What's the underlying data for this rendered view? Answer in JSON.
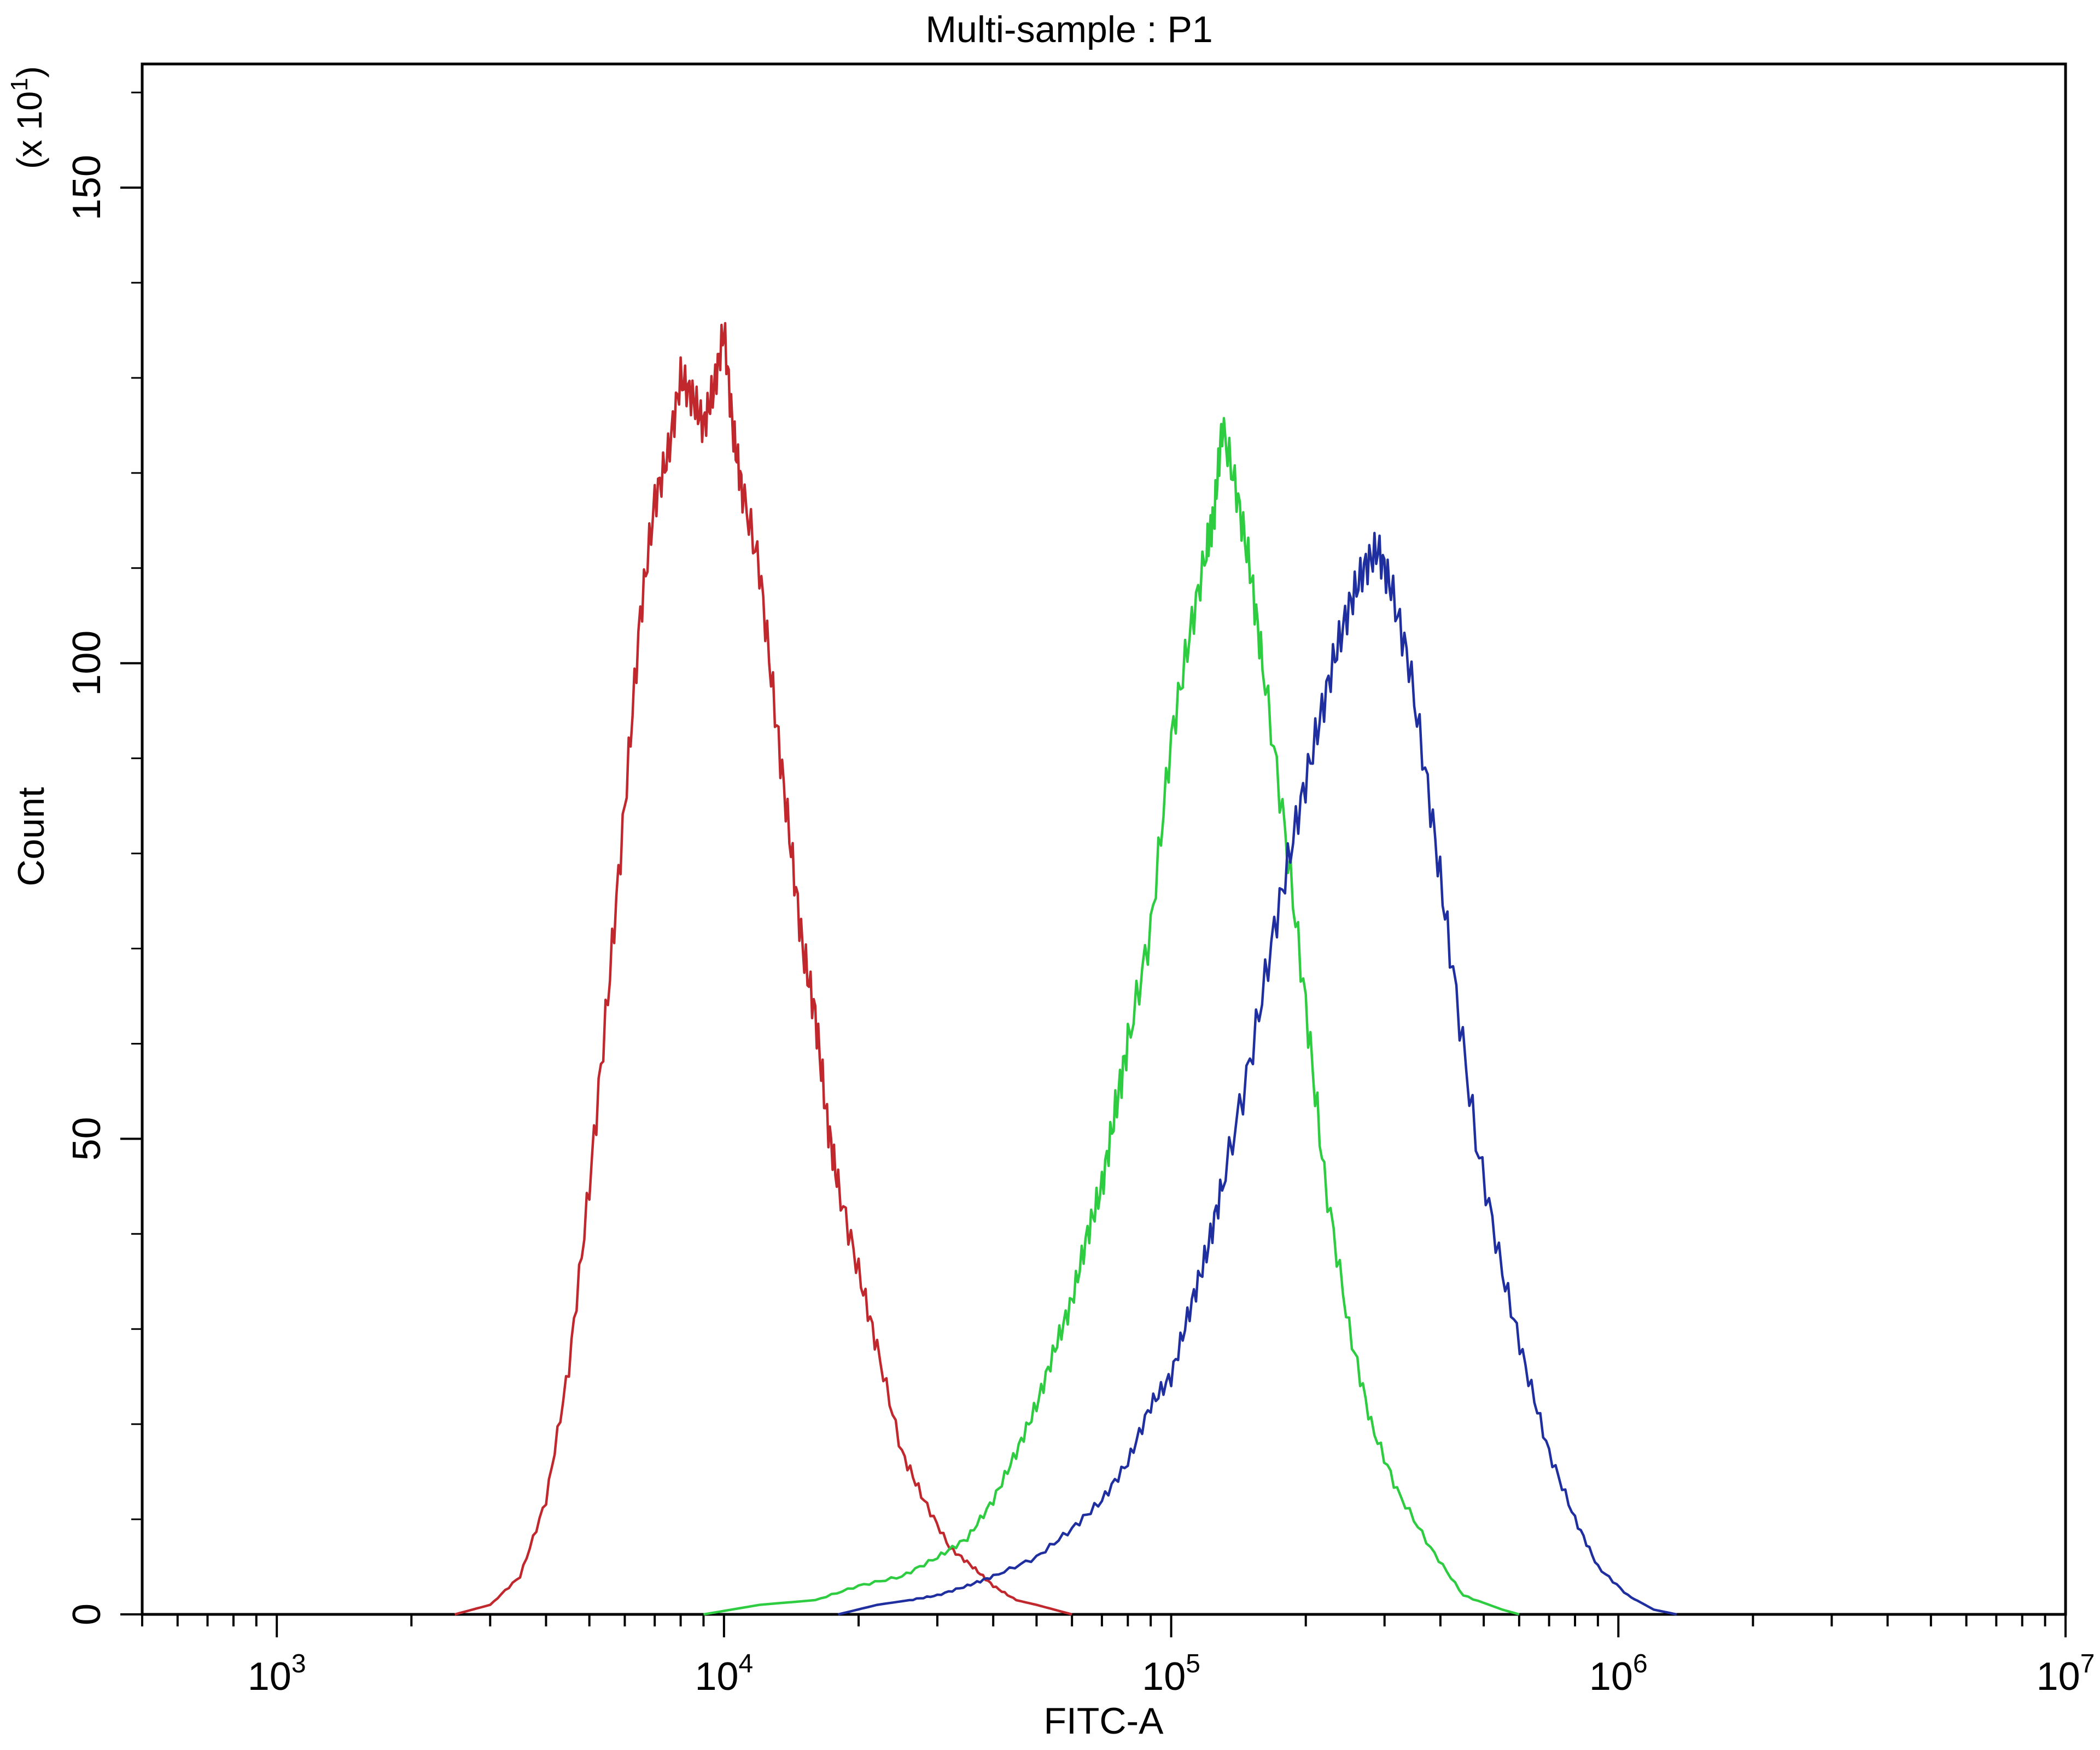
{
  "chart_data": {
    "type": "line",
    "title": "Multi-sample : P1",
    "xlabel": "FITC-A",
    "ylabel": "Count",
    "y_multiplier_label": "(x 10^1)",
    "x_scale": "log",
    "xlim": [
      500,
      10000000
    ],
    "ylim": [
      0,
      163
    ],
    "x_ticks": [
      {
        "value": 1000,
        "base": "10",
        "exp": "3"
      },
      {
        "value": 10000,
        "base": "10",
        "exp": "4"
      },
      {
        "value": 100000,
        "base": "10",
        "exp": "5"
      },
      {
        "value": 1000000,
        "base": "10",
        "exp": "6"
      },
      {
        "value": 10000000,
        "base": "10",
        "exp": "7"
      }
    ],
    "y_ticks": [
      "0",
      "50",
      "100",
      "150"
    ],
    "grid": false,
    "legend": "none",
    "series": [
      {
        "color": "#c0282d",
        "x": [
          2500,
          3000,
          3500,
          4000,
          4500,
          5000,
          5500,
          6000,
          6500,
          7000,
          7500,
          8000,
          8500,
          9000,
          9500,
          10000,
          10500,
          11000,
          12000,
          13000,
          14000,
          15000,
          16000,
          17000,
          18000,
          20000,
          22000,
          25000,
          28000,
          32000,
          36000,
          40000,
          45000,
          50000,
          60000
        ],
        "y": [
          0,
          1,
          4,
          12,
          26,
          45,
          65,
          85,
          105,
          117,
          122,
          130,
          128,
          125,
          129,
          135,
          124,
          118,
          110,
          95,
          82,
          70,
          63,
          52,
          45,
          36,
          28,
          17,
          12,
          7,
          5,
          3,
          1.5,
          1,
          0
        ]
      },
      {
        "color": "#2ecc40",
        "x": [
          9000,
          12000,
          16000,
          20000,
          25000,
          30000,
          35000,
          40000,
          45000,
          50000,
          55000,
          60000,
          65000,
          70000,
          75000,
          80000,
          90000,
          100000,
          110000,
          120000,
          125000,
          130000,
          140000,
          150000,
          160000,
          180000,
          200000,
          220000,
          250000,
          280000,
          320000,
          380000,
          450000,
          550000,
          600000
        ],
        "y": [
          0,
          1,
          1.5,
          3,
          4,
          6,
          8,
          12,
          17,
          22,
          28,
          33,
          40,
          45,
          53,
          60,
          72,
          92,
          103,
          112,
          116,
          125,
          118,
          110,
          100,
          82,
          64,
          46,
          30,
          20,
          13,
          7,
          2,
          0.5,
          0
        ]
      },
      {
        "color": "#1f2fa0",
        "x": [
          18000,
          22000,
          26000,
          30000,
          35000,
          40000,
          50000,
          60000,
          70000,
          80000,
          90000,
          100000,
          110000,
          120000,
          130000,
          150000,
          170000,
          190000,
          210000,
          230000,
          250000,
          270000,
          290000,
          310000,
          340000,
          380000,
          420000,
          480000,
          550000,
          620000,
          700000,
          800000,
          900000,
          1050000,
          1200000,
          1350000
        ],
        "y": [
          0,
          1,
          1.5,
          2,
          3,
          4,
          6,
          9,
          12,
          16,
          22,
          25,
          32,
          38,
          45,
          58,
          72,
          83,
          92,
          100,
          106,
          110,
          112,
          108,
          100,
          85,
          70,
          50,
          36,
          26,
          17,
          10,
          5,
          2,
          0.5,
          0
        ]
      }
    ]
  }
}
